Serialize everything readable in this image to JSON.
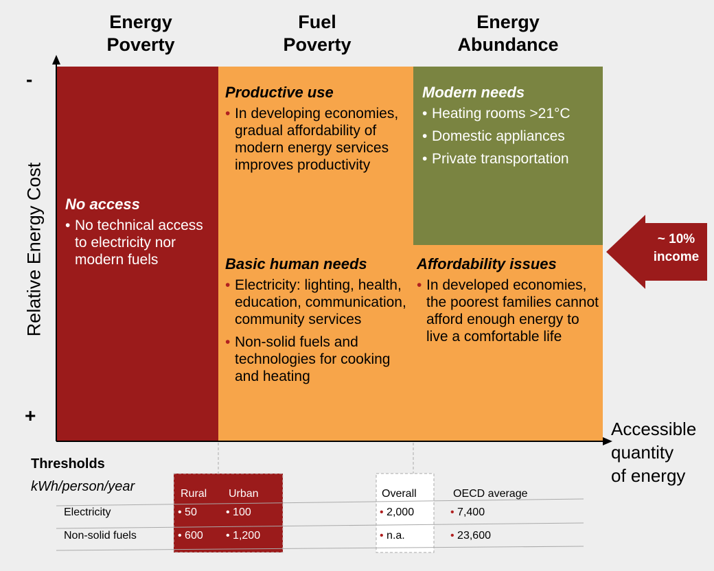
{
  "columns": [
    "Energy Poverty",
    "Fuel Poverty",
    "Energy Abundance"
  ],
  "axis": {
    "y_label": "Relative Energy Cost",
    "y_top": "-",
    "y_bottom": "+",
    "x_label": [
      "Accessible",
      "quantity",
      "of energy"
    ]
  },
  "cells": [
    {
      "title": "No access",
      "bullets": [
        "No technical access to electricity nor modern fuels"
      ]
    },
    {
      "title": "Productive use",
      "bullets": [
        "In developing economies, gradual affordability of modern energy services improves productivity"
      ]
    },
    {
      "title": "Basic human needs",
      "bullets": [
        "Electricity: lighting, health, education, communication, community services",
        "Non-solid fuels and technologies for cooking and heating"
      ]
    },
    {
      "title": "Modern needs",
      "bullets": [
        "Heating rooms >21°C",
        "Domestic appliances",
        "Private transportation"
      ]
    },
    {
      "title": "Affordability issues",
      "bullets": [
        "In developed economies, the poorest families cannot afford enough energy to live a comfortable life"
      ]
    }
  ],
  "callout": [
    "~ 10%",
    "income"
  ],
  "thresholds": {
    "title": "Thresholds",
    "unit": "kWh/person/year",
    "headers": [
      "Rural",
      "Urban",
      "Overall",
      "OECD average"
    ],
    "rows": [
      {
        "label": "Electricity",
        "values": [
          "50",
          "100",
          "2,000",
          "7,400"
        ]
      },
      {
        "label": "Non-solid fuels",
        "values": [
          "600",
          "1,200",
          "n.a.",
          "23,600"
        ]
      }
    ]
  }
}
